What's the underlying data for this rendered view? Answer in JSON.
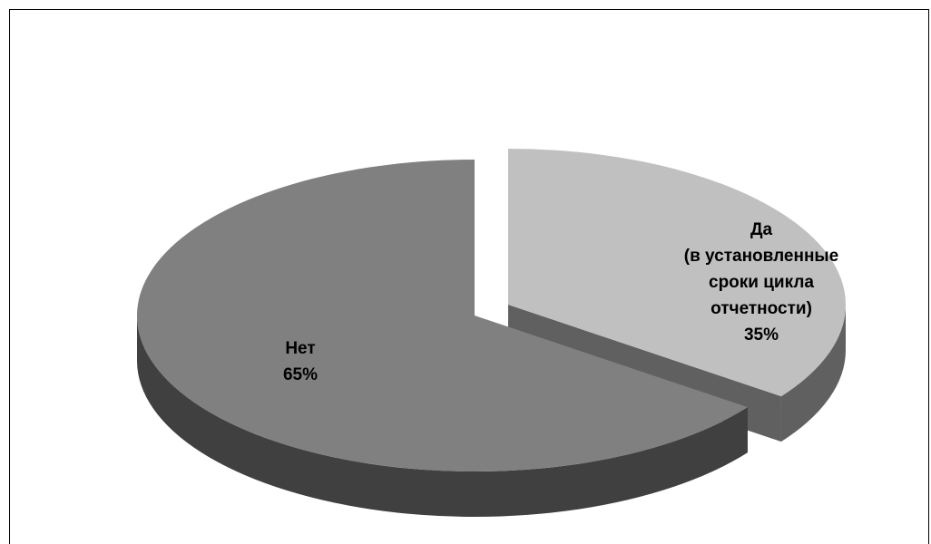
{
  "chart_data": {
    "type": "pie",
    "categories": [
      "Да (в установленные сроки цикла отчетности)",
      "Нет"
    ],
    "values": [
      35,
      65
    ],
    "slices": [
      {
        "label_lines": [
          "Да",
          "(в установленные",
          "сроки цикла",
          "отчетности)"
        ],
        "percent_label": "35%",
        "value": 35,
        "color": "#c0c0c0",
        "side_color": "#606060",
        "exploded": true
      },
      {
        "label_lines": [
          "Нет"
        ],
        "percent_label": "65%",
        "value": 65,
        "color": "#808080",
        "side_color": "#404040",
        "exploded": false
      }
    ],
    "start_angle_deg": -90,
    "direction": "clockwise",
    "three_d": true,
    "legend": "none"
  }
}
